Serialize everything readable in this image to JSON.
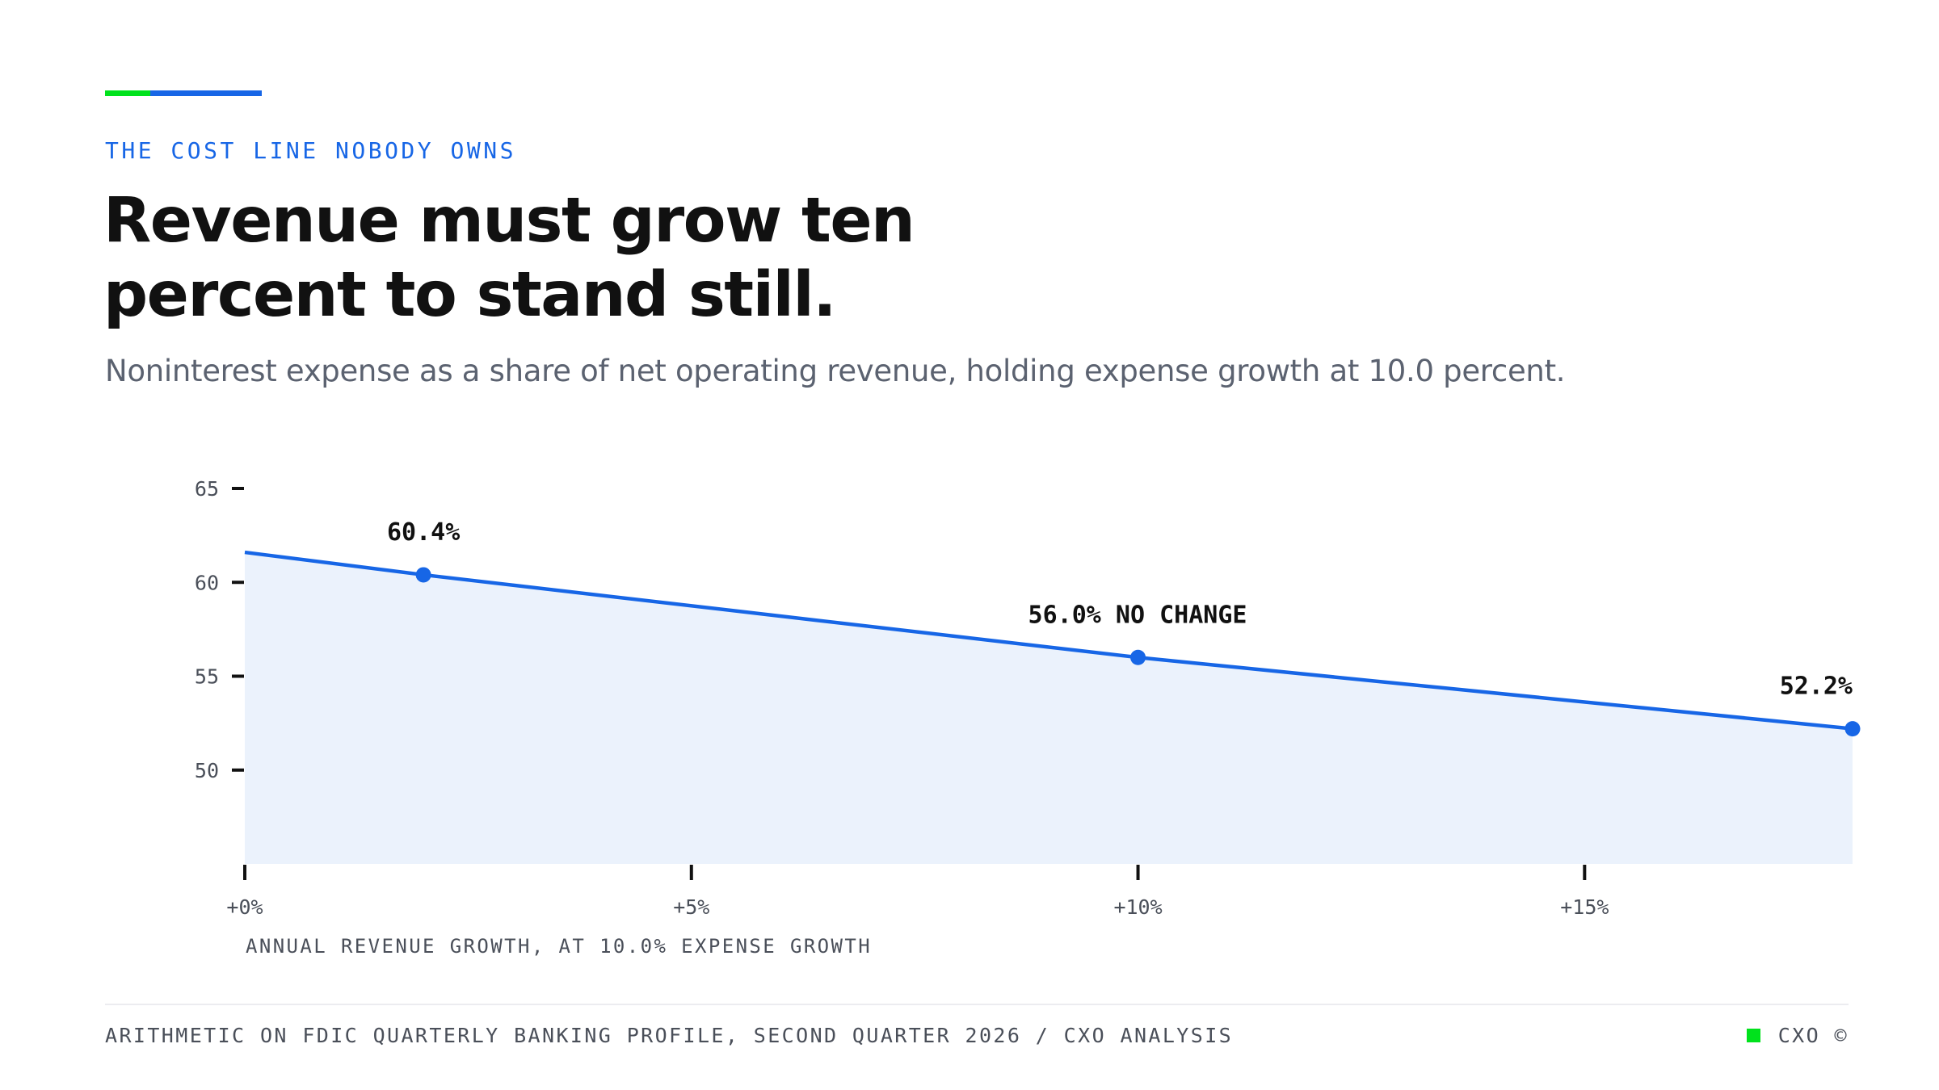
{
  "header": {
    "eyebrow": "THE COST LINE NOBODY OWNS",
    "title": "Revenue must grow ten percent to stand still.",
    "subtitle": "Noninterest expense as a share of net operating revenue, holding expense growth at 10.0 percent."
  },
  "colors": {
    "accent_green": "#00e21c",
    "accent_blue": "#1766e6",
    "area_fill": "#ebf2fc",
    "text_dark": "#111111",
    "text_muted": "#5b6270"
  },
  "chart_data": {
    "type": "area",
    "xlabel": "ANNUAL REVENUE GROWTH, AT 10.0% EXPENSE GROWTH",
    "ylabel": "",
    "xlim": [
      0,
      18
    ],
    "ylim": [
      45,
      65
    ],
    "x_ticks": [
      0,
      5,
      10,
      15
    ],
    "x_tick_labels": [
      "+0%",
      "+5%",
      "+10%",
      "+15%"
    ],
    "y_ticks": [
      50,
      55,
      60,
      65
    ],
    "y_tick_labels": [
      "50",
      "55",
      "60",
      "65"
    ],
    "grid": false,
    "series": [
      {
        "x": [
          0,
          2,
          10,
          18
        ],
        "y": [
          61.6,
          60.4,
          56.0,
          52.2
        ]
      }
    ],
    "markers": [
      {
        "x": 2,
        "y": 60.4,
        "label": "60.4%"
      },
      {
        "x": 10,
        "y": 56.0,
        "label": "56.0% NO CHANGE"
      },
      {
        "x": 18,
        "y": 52.2,
        "label": "52.2%"
      }
    ]
  },
  "footer": {
    "source": "ARITHMETIC ON FDIC QUARTERLY BANKING PROFILE, SECOND QUARTER 2026 / CXO ANALYSIS",
    "brand": "CXO ©"
  }
}
